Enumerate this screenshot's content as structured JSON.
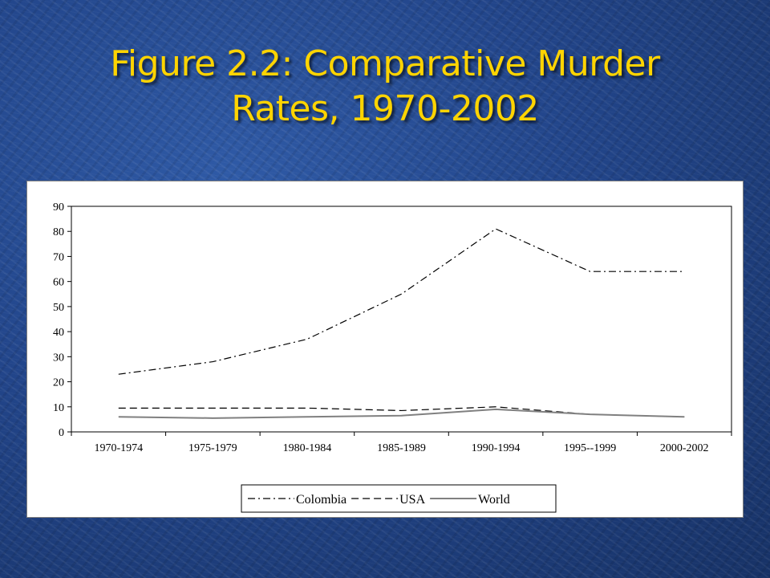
{
  "slide": {
    "title_line1": "Figure 2.2:  Comparative Murder",
    "title_line2": "Rates, 1970-2002",
    "title_color": "#ffd400"
  },
  "chart_data": {
    "type": "line",
    "categories": [
      "1970-1974",
      "1975-1979",
      "1980-1984",
      "1985-1989",
      "1990-1994",
      "1995--1999",
      "2000-2002"
    ],
    "ylim": [
      0,
      90
    ],
    "yticks": [
      0,
      10,
      20,
      30,
      40,
      50,
      60,
      70,
      80,
      90
    ],
    "grid": false,
    "legend_position": "bottom",
    "series": [
      {
        "name": "Colombia",
        "style": "dash-dot",
        "color": "#000000",
        "values": [
          23,
          28,
          37,
          55,
          81,
          64,
          64
        ]
      },
      {
        "name": "USA",
        "style": "dashed",
        "color": "#000000",
        "values": [
          9.5,
          9.5,
          9.5,
          8.5,
          10,
          7,
          6
        ]
      },
      {
        "name": "World",
        "style": "solid",
        "color": "#808080",
        "values": [
          6,
          5.5,
          6,
          6.5,
          9,
          7,
          6
        ]
      }
    ]
  }
}
